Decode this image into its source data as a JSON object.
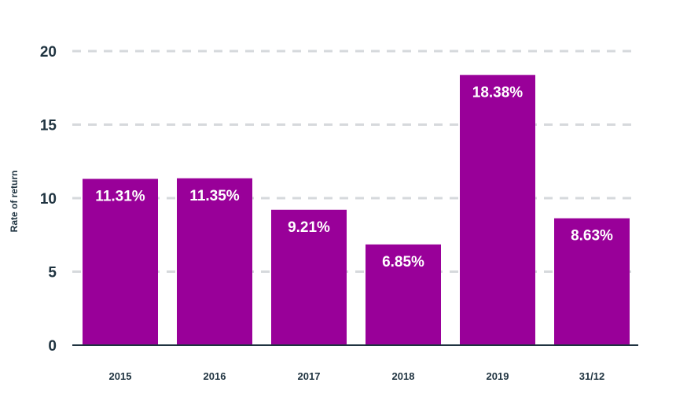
{
  "chart_data": {
    "type": "bar",
    "categories": [
      "2015",
      "2016",
      "2017",
      "2018",
      "2019",
      "31/12"
    ],
    "values": [
      11.31,
      11.35,
      9.21,
      6.85,
      18.38,
      8.63
    ],
    "data_labels": [
      "11.31%",
      "11.35%",
      "9.21%",
      "6.85%",
      "18.38%",
      "8.63%"
    ],
    "title": "",
    "xlabel": "",
    "ylabel": "Rate of return",
    "ylim": [
      0,
      20
    ],
    "yticks": [
      0,
      5,
      10,
      15,
      20
    ],
    "grid": true,
    "colors": {
      "bar": "#990099",
      "axis_text": "#1f3340",
      "grid": "#d6d9dc",
      "data_label": "#ffffff"
    }
  }
}
